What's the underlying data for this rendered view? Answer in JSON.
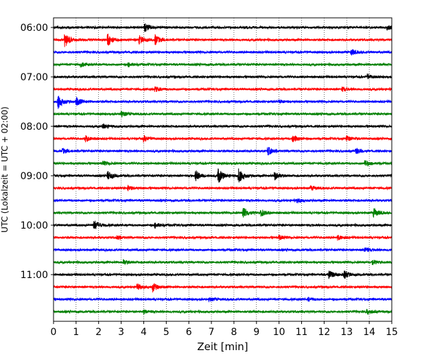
{
  "chart_data": {
    "type": "line",
    "title": "",
    "xlabel": "Zeit  [min]",
    "ylabel": "UTC (Lokalzeit = UTC + 02:00)",
    "xlim": [
      0,
      15
    ],
    "x_ticks": [
      0,
      1,
      2,
      3,
      4,
      5,
      6,
      7,
      8,
      9,
      10,
      11,
      12,
      13,
      14,
      15
    ],
    "row_interval_minutes": 15,
    "first_row_time": "06:00",
    "y_tick_labels": [
      "06:00",
      "07:00",
      "08:00",
      "09:00",
      "10:00",
      "11:00"
    ],
    "grid": "vertical dotted lines at each minute",
    "legend": "none",
    "colors": [
      "#000000",
      "#ff0000",
      "#0000ff",
      "#008000"
    ],
    "series": [
      {
        "start": "06:00",
        "color": "#000000",
        "events": [
          {
            "t": 4.05,
            "amp": 1.0
          },
          {
            "t": 14.8,
            "amp": 0.5
          }
        ]
      },
      {
        "start": "06:15",
        "color": "#ff0000",
        "events": [
          {
            "t": 0.5,
            "amp": 1.8
          },
          {
            "t": 2.4,
            "amp": 1.5
          },
          {
            "t": 4.5,
            "amp": 1.2
          },
          {
            "t": 3.8,
            "amp": 1.0
          }
        ]
      },
      {
        "start": "06:30",
        "color": "#0000ff",
        "events": [
          {
            "t": 13.2,
            "amp": 0.7
          }
        ]
      },
      {
        "start": "06:45",
        "color": "#008000",
        "events": [
          {
            "t": 1.2,
            "amp": 0.5
          },
          {
            "t": 3.3,
            "amp": 0.5
          }
        ]
      },
      {
        "start": "07:00",
        "color": "#000000",
        "events": [
          {
            "t": 13.9,
            "amp": 0.6
          }
        ]
      },
      {
        "start": "07:15",
        "color": "#ff0000",
        "events": [
          {
            "t": 4.5,
            "amp": 0.6
          },
          {
            "t": 12.8,
            "amp": 0.5
          }
        ]
      },
      {
        "start": "07:30",
        "color": "#0000ff",
        "events": [
          {
            "t": 0.2,
            "amp": 1.6
          },
          {
            "t": 1.0,
            "amp": 1.0
          },
          {
            "t": 10.0,
            "amp": 0.4
          }
        ]
      },
      {
        "start": "07:45",
        "color": "#008000",
        "events": [
          {
            "t": 3.0,
            "amp": 0.7
          }
        ]
      },
      {
        "start": "08:00",
        "color": "#000000",
        "events": [
          {
            "t": 2.2,
            "amp": 0.6
          }
        ]
      },
      {
        "start": "08:15",
        "color": "#ff0000",
        "events": [
          {
            "t": 1.4,
            "amp": 0.7
          },
          {
            "t": 4.0,
            "amp": 0.7
          },
          {
            "t": 10.6,
            "amp": 1.0
          },
          {
            "t": 13.0,
            "amp": 0.6
          }
        ]
      },
      {
        "start": "08:30",
        "color": "#0000ff",
        "events": [
          {
            "t": 0.4,
            "amp": 0.6
          },
          {
            "t": 9.5,
            "amp": 1.0
          },
          {
            "t": 13.4,
            "amp": 0.7
          }
        ]
      },
      {
        "start": "08:45",
        "color": "#008000",
        "events": [
          {
            "t": 2.2,
            "amp": 0.5
          },
          {
            "t": 13.8,
            "amp": 0.8
          }
        ]
      },
      {
        "start": "09:00",
        "color": "#000000",
        "events": [
          {
            "t": 2.4,
            "amp": 1.0
          },
          {
            "t": 6.3,
            "amp": 1.3
          },
          {
            "t": 7.3,
            "amp": 1.8
          },
          {
            "t": 8.2,
            "amp": 1.8
          },
          {
            "t": 9.8,
            "amp": 1.0
          }
        ]
      },
      {
        "start": "09:15",
        "color": "#ff0000",
        "events": [
          {
            "t": 3.3,
            "amp": 0.6
          },
          {
            "t": 11.4,
            "amp": 0.5
          }
        ]
      },
      {
        "start": "09:30",
        "color": "#0000ff",
        "events": [
          {
            "t": 10.8,
            "amp": 0.5
          }
        ]
      },
      {
        "start": "09:45",
        "color": "#008000",
        "events": [
          {
            "t": 8.4,
            "amp": 1.4
          },
          {
            "t": 9.2,
            "amp": 0.8
          },
          {
            "t": 14.2,
            "amp": 1.0
          }
        ]
      },
      {
        "start": "10:00",
        "color": "#000000",
        "events": [
          {
            "t": 1.8,
            "amp": 1.2
          },
          {
            "t": 4.5,
            "amp": 0.6
          }
        ]
      },
      {
        "start": "10:15",
        "color": "#ff0000",
        "events": [
          {
            "t": 2.8,
            "amp": 0.5
          },
          {
            "t": 10.0,
            "amp": 0.5
          },
          {
            "t": 12.6,
            "amp": 0.5
          }
        ]
      },
      {
        "start": "10:30",
        "color": "#0000ff",
        "events": [
          {
            "t": 13.8,
            "amp": 0.6
          }
        ]
      },
      {
        "start": "10:45",
        "color": "#008000",
        "events": [
          {
            "t": 3.1,
            "amp": 0.5
          },
          {
            "t": 14.1,
            "amp": 0.6
          }
        ]
      },
      {
        "start": "11:00",
        "color": "#000000",
        "events": [
          {
            "t": 12.2,
            "amp": 1.2
          },
          {
            "t": 12.9,
            "amp": 0.9
          }
        ]
      },
      {
        "start": "11:15",
        "color": "#ff0000",
        "events": [
          {
            "t": 4.4,
            "amp": 1.0
          },
          {
            "t": 3.7,
            "amp": 0.7
          }
        ]
      },
      {
        "start": "11:30",
        "color": "#0000ff",
        "events": [
          {
            "t": 6.9,
            "amp": 0.4
          },
          {
            "t": 11.3,
            "amp": 0.4
          }
        ]
      },
      {
        "start": "11:45",
        "color": "#008000",
        "events": [
          {
            "t": 13.9,
            "amp": 0.6
          },
          {
            "t": 4.0,
            "amp": 0.4
          }
        ]
      }
    ]
  }
}
